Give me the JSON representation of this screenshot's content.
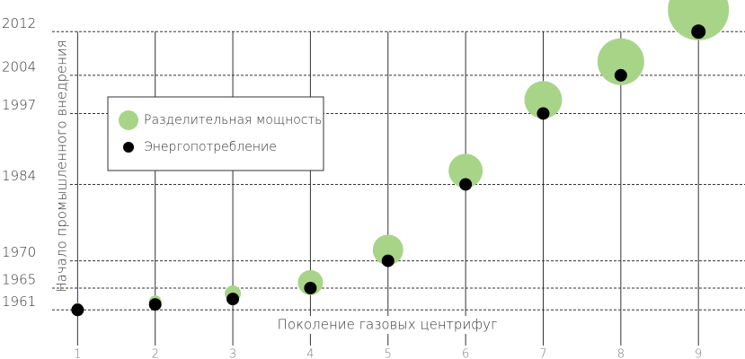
{
  "chart_data": {
    "type": "scatter",
    "x_label": "Поколение газовых центрифуг",
    "y_label": "Начало промышленного внедрения",
    "x": [
      1,
      2,
      3,
      4,
      5,
      6,
      7,
      8,
      9
    ],
    "series": [
      {
        "name": "Разделительная мощность",
        "color": "#a8d488",
        "values": [
          1961.5,
          1962.5,
          1964,
          1966,
          1972,
          1986.5,
          1999.5,
          2006.5,
          2016
        ],
        "sizes": [
          5,
          7,
          9,
          14,
          17,
          19,
          21,
          26,
          34
        ]
      },
      {
        "name": "Энергопотребление",
        "color": "#000000",
        "values": [
          1961,
          1962,
          1963,
          1965,
          1970,
          1984,
          1997,
          2004,
          2012
        ],
        "sizes": [
          7,
          7,
          7,
          7,
          7,
          7,
          7,
          7,
          8
        ]
      }
    ],
    "xlim": [
      0,
      9.6
    ],
    "xticks": [
      1,
      2,
      3,
      4,
      5,
      6,
      7,
      8,
      9
    ],
    "ylim": [
      1952,
      2017.8
    ],
    "yticks": [
      1961,
      1965,
      1970,
      1984,
      1997,
      2004,
      2012
    ],
    "grid": true
  }
}
